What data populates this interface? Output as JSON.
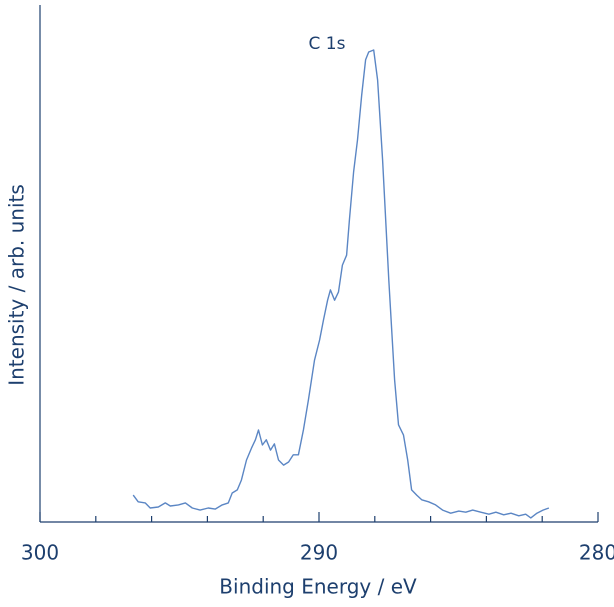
{
  "chart_data": {
    "type": "line",
    "xlabel": "Binding Energy / eV",
    "ylabel": "Intensity / arb. units",
    "annotation": "C 1s",
    "xlim": [
      300,
      280
    ],
    "ylim": [
      0,
      100
    ],
    "xticks": [
      300,
      290,
      280
    ],
    "xminorticks": [
      298,
      296,
      294,
      292,
      288,
      286,
      284,
      282
    ],
    "series": [
      {
        "color": "#5b86c4",
        "x": [
          296.66,
          296.48,
          296.23,
          296.05,
          295.76,
          295.51,
          295.33,
          295.04,
          294.79,
          294.54,
          294.26,
          293.97,
          293.72,
          293.47,
          293.25,
          293.11,
          292.93,
          292.78,
          292.6,
          292.42,
          292.28,
          292.17,
          292.03,
          291.89,
          291.74,
          291.6,
          291.45,
          291.27,
          291.09,
          290.92,
          290.74,
          290.56,
          290.38,
          290.16,
          289.98,
          289.84,
          289.69,
          289.59,
          289.44,
          289.3,
          289.16,
          289.01,
          288.91,
          288.76,
          288.62,
          288.47,
          288.33,
          288.22,
          288.04,
          287.9,
          287.72,
          287.5,
          287.29,
          287.15,
          286.97,
          286.82,
          286.68,
          286.5,
          286.32,
          286.07,
          285.82,
          285.57,
          285.28,
          284.99,
          284.74,
          284.49,
          284.2,
          283.91,
          283.66,
          283.38,
          283.12,
          282.84,
          282.59,
          282.41,
          282.19,
          281.97,
          281.76
        ],
        "values": [
          5.2,
          3.9,
          3.7,
          2.7,
          2.9,
          3.7,
          3.1,
          3.3,
          3.7,
          2.7,
          2.3,
          2.7,
          2.5,
          3.3,
          3.7,
          5.6,
          6.2,
          8.1,
          12.0,
          14.3,
          15.9,
          17.8,
          14.9,
          15.9,
          13.9,
          15.1,
          12.0,
          11.0,
          11.6,
          13.0,
          13.0,
          17.8,
          23.6,
          31.3,
          35.2,
          39.1,
          42.9,
          44.9,
          42.9,
          44.5,
          49.7,
          51.6,
          58.4,
          67.7,
          73.9,
          82.6,
          89.4,
          90.9,
          91.3,
          85.5,
          70.0,
          46.8,
          27.5,
          18.8,
          16.8,
          12.0,
          6.2,
          5.2,
          4.3,
          3.9,
          3.3,
          2.3,
          1.7,
          2.1,
          1.9,
          2.3,
          1.9,
          1.5,
          1.9,
          1.4,
          1.7,
          1.2,
          1.5,
          0.8,
          1.7,
          2.3,
          2.7
        ]
      }
    ]
  }
}
